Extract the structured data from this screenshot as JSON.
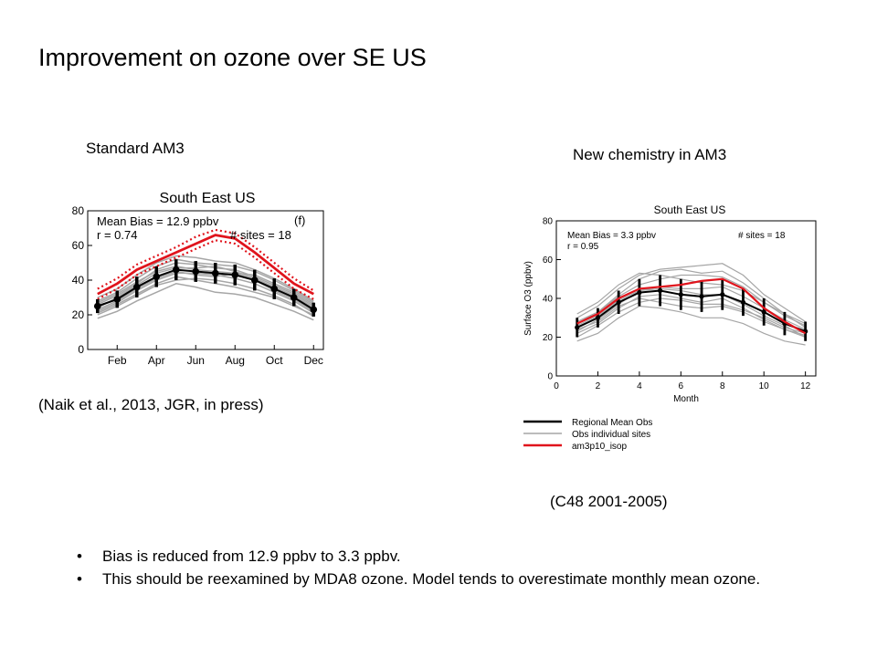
{
  "slide": {
    "title": "Improvement on ozone over SE US",
    "left_heading": "Standard AM3",
    "right_heading": "New chemistry in AM3",
    "left_citation": "(Naik et al., 2013, JGR, in press)",
    "right_citation": "(C48 2001-2005)",
    "bullets": [
      "Bias is reduced from 12.9 ppbv to 3.3 ppbv.",
      "This should be reexamined by MDA8 ozone. Model tends to overestimate monthly mean ozone."
    ],
    "bullet_glyph": "•"
  },
  "colors": {
    "model": "#e0141c",
    "obs_mean": "#000000",
    "obs_sites": "#a6a6a6"
  },
  "chart_data": [
    {
      "type": "line",
      "title": "South East US",
      "panel_label": "(f)",
      "stats": [
        "Mean Bias = 12.9 ppbv",
        "r = 0.74",
        "# sites = 18"
      ],
      "xlabel": "",
      "ylabel": "",
      "x": [
        1,
        2,
        3,
        4,
        5,
        6,
        7,
        8,
        9,
        10,
        11,
        12
      ],
      "x_ticks": [
        2,
        4,
        6,
        8,
        10,
        12
      ],
      "x_tick_labels": [
        "Feb",
        "Apr",
        "Jun",
        "Aug",
        "Oct",
        "Dec"
      ],
      "y_ticks": [
        0,
        20,
        40,
        60,
        80
      ],
      "xlim": [
        0.5,
        12.5
      ],
      "ylim": [
        0,
        80
      ],
      "series": [
        {
          "role": "model",
          "values": [
            32,
            38,
            46,
            51,
            56,
            61,
            66,
            64,
            56,
            47,
            38,
            32
          ]
        },
        {
          "role": "model-range-upper",
          "values": [
            35,
            41,
            49,
            54,
            59,
            65,
            69,
            67,
            59,
            50,
            41,
            34
          ]
        },
        {
          "role": "model-range-lower",
          "values": [
            29,
            35,
            43,
            48,
            53,
            58,
            63,
            61,
            53,
            44,
            35,
            29
          ]
        },
        {
          "role": "obs-mean",
          "values": [
            25,
            29,
            36,
            42,
            46,
            45,
            44,
            43,
            40,
            35,
            30,
            23
          ],
          "errors": [
            4,
            5,
            6,
            6,
            6,
            6,
            6,
            6,
            6,
            6,
            5,
            4
          ]
        },
        {
          "role": "obs-site",
          "values": [
            26,
            31,
            38,
            46,
            50,
            49,
            47,
            46,
            42,
            37,
            32,
            25
          ]
        },
        {
          "role": "obs-site",
          "values": [
            22,
            27,
            34,
            40,
            44,
            44,
            43,
            41,
            38,
            33,
            28,
            21
          ]
        },
        {
          "role": "obs-site",
          "values": [
            28,
            33,
            41,
            48,
            52,
            50,
            49,
            48,
            45,
            40,
            34,
            27
          ]
        },
        {
          "role": "obs-site",
          "values": [
            20,
            25,
            31,
            37,
            40,
            41,
            40,
            38,
            35,
            31,
            26,
            19
          ]
        },
        {
          "role": "obs-site",
          "values": [
            24,
            30,
            37,
            44,
            47,
            47,
            48,
            45,
            41,
            36,
            31,
            24
          ]
        },
        {
          "role": "obs-site",
          "values": [
            18,
            22,
            28,
            33,
            38,
            36,
            33,
            32,
            30,
            26,
            22,
            17
          ]
        },
        {
          "role": "obs-site",
          "values": [
            30,
            35,
            43,
            50,
            54,
            53,
            51,
            50,
            46,
            41,
            35,
            28
          ]
        },
        {
          "role": "obs-site",
          "values": [
            23,
            28,
            35,
            41,
            45,
            43,
            42,
            44,
            40,
            34,
            29,
            22
          ]
        },
        {
          "role": "obs-site",
          "values": [
            27,
            32,
            39,
            45,
            48,
            46,
            45,
            44,
            43,
            38,
            33,
            26
          ]
        },
        {
          "role": "obs-site",
          "values": [
            21,
            26,
            32,
            38,
            42,
            40,
            38,
            36,
            33,
            30,
            25,
            20
          ]
        }
      ]
    },
    {
      "type": "line",
      "title": "South East US",
      "stats": [
        "Mean Bias = 3.3 ppbv",
        "r = 0.95",
        "# sites = 18"
      ],
      "xlabel": "Month",
      "ylabel": "Surface O3 (ppbv)",
      "x": [
        1,
        2,
        3,
        4,
        5,
        6,
        7,
        8,
        9,
        10,
        11,
        12
      ],
      "x_ticks": [
        0,
        2,
        4,
        6,
        8,
        10,
        12
      ],
      "y_ticks": [
        0,
        20,
        40,
        60,
        80
      ],
      "xlim": [
        0,
        12.5
      ],
      "ylim": [
        0,
        80
      ],
      "legend": [
        "Regional Mean Obs",
        "Obs individual sites",
        "am3p10_isop"
      ],
      "legend_placement": "below",
      "series": [
        {
          "role": "model",
          "name": "am3p10_isop",
          "values": [
            27,
            32,
            40,
            45,
            46,
            47,
            49,
            50,
            45,
            35,
            28,
            22
          ]
        },
        {
          "role": "obs-mean",
          "name": "Regional Mean Obs",
          "values": [
            25,
            30,
            38,
            43,
            44,
            42,
            41,
            42,
            38,
            33,
            27,
            23
          ],
          "errors": [
            5,
            5,
            6,
            7,
            8,
            8,
            8,
            8,
            7,
            7,
            6,
            5
          ]
        },
        {
          "role": "obs-site",
          "name": "Obs individual sites",
          "values": [
            28,
            33,
            42,
            50,
            54,
            55,
            53,
            54,
            48,
            40,
            32,
            25
          ]
        },
        {
          "role": "obs-site",
          "values": [
            22,
            27,
            35,
            41,
            42,
            40,
            38,
            40,
            35,
            29,
            24,
            20
          ]
        },
        {
          "role": "obs-site",
          "values": [
            30,
            36,
            45,
            52,
            55,
            56,
            57,
            58,
            52,
            42,
            35,
            28
          ]
        },
        {
          "role": "obs-site",
          "values": [
            18,
            22,
            30,
            36,
            35,
            33,
            30,
            30,
            27,
            22,
            18,
            16
          ]
        },
        {
          "role": "obs-site",
          "values": [
            26,
            31,
            39,
            44,
            46,
            45,
            45,
            46,
            41,
            35,
            29,
            24
          ]
        },
        {
          "role": "obs-site",
          "values": [
            24,
            28,
            36,
            40,
            38,
            36,
            35,
            36,
            33,
            28,
            24,
            21
          ]
        },
        {
          "role": "obs-site",
          "values": [
            32,
            38,
            47,
            53,
            52,
            50,
            48,
            47,
            44,
            38,
            32,
            27
          ]
        },
        {
          "role": "obs-site",
          "values": [
            20,
            26,
            33,
            38,
            40,
            39,
            37,
            37,
            34,
            30,
            25,
            22
          ]
        },
        {
          "role": "obs-site",
          "values": [
            27,
            33,
            41,
            47,
            50,
            52,
            52,
            51,
            46,
            38,
            31,
            26
          ]
        },
        {
          "role": "obs-site",
          "values": [
            23,
            29,
            37,
            44,
            45,
            44,
            42,
            42,
            37,
            31,
            26,
            20
          ]
        }
      ]
    }
  ]
}
